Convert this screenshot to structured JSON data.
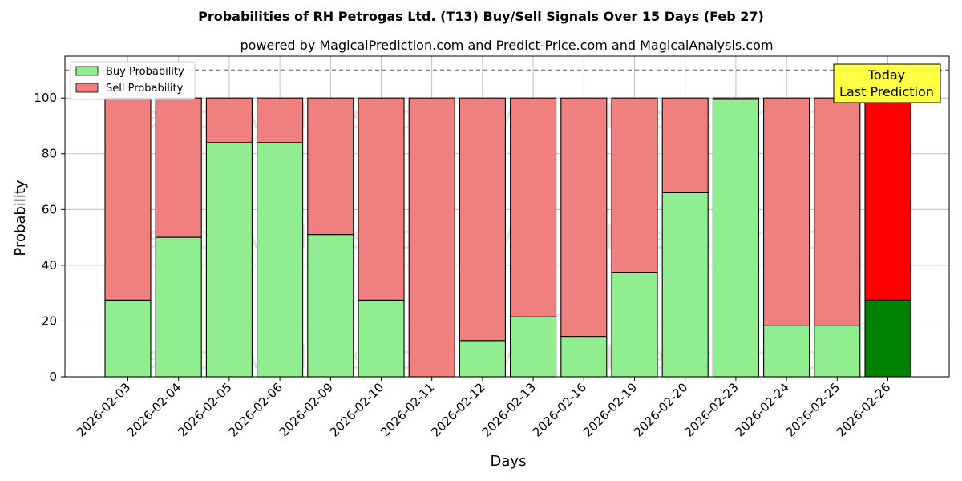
{
  "chart_data": {
    "type": "bar",
    "stacked": true,
    "title": "Probabilities of RH Petrogas Ltd. (T13) Buy/Sell Signals Over 15 Days (Feb 27)",
    "subtitle": "powered by MagicalPrediction.com and Predict-Price.com and MagicalAnalysis.com",
    "xlabel": "Days",
    "ylabel": "Probability",
    "ylim": [
      0,
      115
    ],
    "yticks": [
      0,
      20,
      40,
      60,
      80,
      100
    ],
    "grid": true,
    "legend_placement": "top-left",
    "reference_line": 110,
    "categories": [
      "2026-02-03",
      "2026-02-04",
      "2026-02-05",
      "2026-02-06",
      "2026-02-09",
      "2026-02-10",
      "2026-02-11",
      "2026-02-12",
      "2026-02-13",
      "2026-02-16",
      "2026-02-19",
      "2026-02-20",
      "2026-02-23",
      "2026-02-24",
      "2026-02-25",
      "2026-02-26"
    ],
    "series": [
      {
        "name": "Buy Probability",
        "color": "#90ee90",
        "highlight_color": "#008000",
        "values": [
          27.5,
          50,
          84,
          84,
          51,
          27.5,
          0,
          13,
          21.5,
          14.5,
          37.5,
          66,
          99.5,
          18.5,
          18.5,
          27.5
        ]
      },
      {
        "name": "Sell Probability",
        "color": "#f08080",
        "highlight_color": "#ff0000",
        "values": [
          72.5,
          50,
          16,
          16,
          49,
          72.5,
          100,
          87,
          78.5,
          85.5,
          62.5,
          34,
          0.5,
          81.5,
          81.5,
          72.5
        ]
      }
    ],
    "highlight_index": 15,
    "annotation": {
      "line1": "Today",
      "line2": "Last Prediction",
      "background": "#ffff44"
    },
    "watermarks": [
      "MagicalAnalysis.com",
      "MagicalPrediction.com"
    ]
  }
}
